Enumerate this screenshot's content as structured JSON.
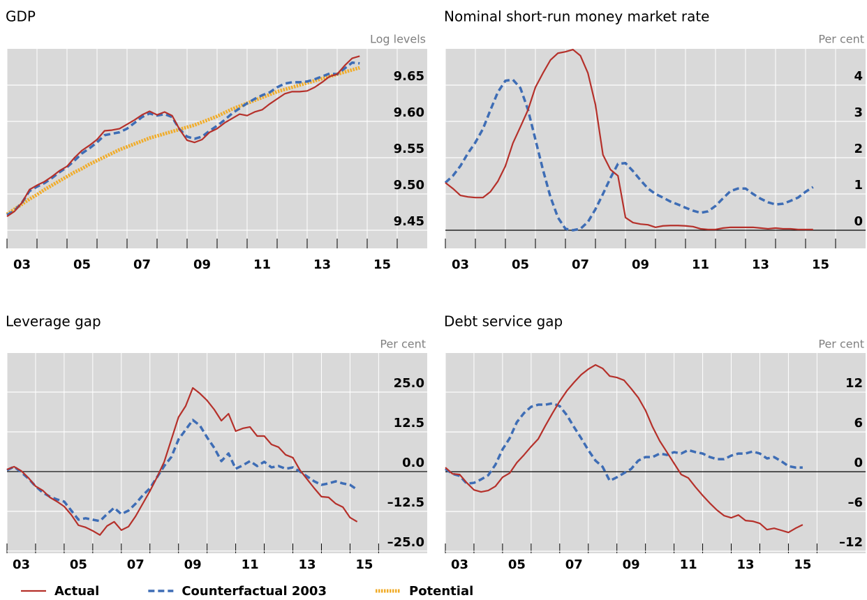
{
  "chart_data": [
    {
      "type": "line",
      "title": "GDP",
      "unit_label": "Log levels",
      "x": [
        3,
        3.25,
        3.5,
        3.75,
        4,
        4.25,
        4.5,
        4.75,
        5,
        5.25,
        5.5,
        5.75,
        6,
        6.25,
        6.5,
        6.75,
        7,
        7.25,
        7.5,
        7.75,
        8,
        8.25,
        8.5,
        8.75,
        9,
        9.25,
        9.5,
        9.75,
        10,
        10.25,
        10.5,
        10.75,
        11,
        11.25,
        11.5,
        11.75,
        12,
        12.25,
        12.5,
        12.75,
        13,
        13.25,
        13.5,
        13.75,
        14,
        14.25,
        14.5,
        14.75
      ],
      "xlim": [
        3,
        17
      ],
      "xticks": [
        {
          "value": 3,
          "label": "03"
        },
        {
          "value": 5,
          "label": "05"
        },
        {
          "value": 7,
          "label": "07"
        },
        {
          "value": 9,
          "label": "09"
        },
        11,
        13,
        15
      ],
      "xminorticks": [
        4,
        6,
        8,
        10,
        12,
        14,
        16
      ],
      "ylim": [
        9.425,
        9.7
      ],
      "yticks": [
        9.45,
        {
          "value": 9.5,
          "label": "9.50"
        },
        9.55,
        {
          "value": 9.6,
          "label": "9.60"
        },
        9.65
      ],
      "zero_line": false,
      "grid": true,
      "series": [
        {
          "name": "Actual",
          "color": "#b5302a",
          "style": "solid",
          "values": [
            9.469,
            9.476,
            9.488,
            9.506,
            9.512,
            9.517,
            9.524,
            9.532,
            9.538,
            9.55,
            9.56,
            9.567,
            9.575,
            9.587,
            9.588,
            9.59,
            9.596,
            9.602,
            9.609,
            9.614,
            9.609,
            9.613,
            9.608,
            9.589,
            9.574,
            9.571,
            9.575,
            9.585,
            9.59,
            9.598,
            9.604,
            9.61,
            9.608,
            9.613,
            9.616,
            9.624,
            9.631,
            9.638,
            9.641,
            9.641,
            9.642,
            9.647,
            9.654,
            9.662,
            9.665,
            9.677,
            9.687,
            9.69
          ]
        },
        {
          "name": "Counterfactual 2003",
          "color": "#3e6db5",
          "style": "dashed",
          "values": [
            9.471,
            9.477,
            9.488,
            9.504,
            9.51,
            9.515,
            9.522,
            9.53,
            9.537,
            9.546,
            9.556,
            9.563,
            9.571,
            9.581,
            9.583,
            9.585,
            9.59,
            9.598,
            9.606,
            9.611,
            9.608,
            9.61,
            9.606,
            9.589,
            9.579,
            9.576,
            9.579,
            9.587,
            9.594,
            9.602,
            9.611,
            9.618,
            9.625,
            9.631,
            9.636,
            9.64,
            9.647,
            9.652,
            9.654,
            9.654,
            9.655,
            9.658,
            9.662,
            9.666,
            9.665,
            9.673,
            9.681,
            9.68
          ]
        },
        {
          "name": "Potential",
          "color": "#f0ac2a",
          "style": "dotted",
          "values": [
            9.472,
            9.479,
            9.486,
            9.493,
            9.499,
            9.506,
            9.512,
            9.518,
            9.524,
            9.53,
            9.535,
            9.541,
            9.546,
            9.551,
            9.556,
            9.561,
            9.565,
            9.569,
            9.573,
            9.577,
            9.58,
            9.583,
            9.586,
            9.589,
            9.592,
            9.595,
            9.599,
            9.603,
            9.607,
            9.612,
            9.617,
            9.621,
            9.625,
            9.629,
            9.633,
            9.637,
            9.641,
            9.644,
            9.647,
            9.65,
            9.653,
            9.656,
            9.659,
            9.662,
            9.665,
            9.668,
            9.671,
            9.674
          ]
        }
      ]
    },
    {
      "type": "line",
      "title": "Nominal short-run money market rate",
      "unit_label": "Per cent",
      "x": [
        3,
        3.25,
        3.5,
        3.75,
        4,
        4.25,
        4.5,
        4.75,
        5,
        5.25,
        5.5,
        5.75,
        6,
        6.25,
        6.5,
        6.75,
        7,
        7.25,
        7.5,
        7.75,
        8,
        8.25,
        8.5,
        8.75,
        9,
        9.25,
        9.5,
        9.75,
        10,
        10.25,
        10.5,
        10.75,
        11,
        11.25,
        11.5,
        11.75,
        12,
        12.25,
        12.5,
        12.75,
        13,
        13.25,
        13.5,
        13.75,
        14,
        14.25,
        14.5,
        14.75,
        15,
        15.25
      ],
      "xlim": [
        3,
        17
      ],
      "xticks": [
        {
          "value": 3,
          "label": "03"
        },
        {
          "value": 5,
          "label": "05"
        },
        {
          "value": 7,
          "label": "07"
        },
        {
          "value": 9,
          "label": "09"
        },
        11,
        13,
        15
      ],
      "xminorticks": [
        4,
        6,
        8,
        10,
        12,
        14,
        16
      ],
      "ylim": [
        -0.5,
        5
      ],
      "yticks": [
        0,
        1,
        2,
        3,
        4
      ],
      "zero_line": true,
      "grid": true,
      "series": [
        {
          "color": "#b5302a",
          "style": "solid",
          "values": [
            1.31,
            1.15,
            0.96,
            0.92,
            0.9,
            0.9,
            1.06,
            1.35,
            1.77,
            2.4,
            2.85,
            3.31,
            3.94,
            4.33,
            4.69,
            4.88,
            4.92,
            4.98,
            4.81,
            4.33,
            3.46,
            2.08,
            1.67,
            1.5,
            0.35,
            0.21,
            0.17,
            0.15,
            0.08,
            0.12,
            0.13,
            0.13,
            0.12,
            0.1,
            0.04,
            0.02,
            0.02,
            0.06,
            0.08,
            0.08,
            0.08,
            0.08,
            0.06,
            0.04,
            0.06,
            0.04,
            0.04,
            0.02,
            0.02,
            0.02
          ]
        },
        {
          "color": "#3e6db5",
          "style": "dashed",
          "values": [
            1.31,
            1.5,
            1.77,
            2.12,
            2.42,
            2.79,
            3.31,
            3.81,
            4.12,
            4.15,
            3.92,
            3.33,
            2.5,
            1.67,
            0.92,
            0.35,
            0.04,
            0.0,
            0.04,
            0.23,
            0.58,
            1.0,
            1.44,
            1.83,
            1.85,
            1.63,
            1.38,
            1.15,
            1.0,
            0.9,
            0.79,
            0.71,
            0.62,
            0.54,
            0.48,
            0.52,
            0.67,
            0.88,
            1.08,
            1.15,
            1.15,
            1.0,
            0.87,
            0.77,
            0.71,
            0.73,
            0.81,
            0.9,
            1.06,
            1.19
          ]
        }
      ]
    },
    {
      "type": "line",
      "title": "Leverage gap",
      "unit_label": "Per cent",
      "x": [
        3,
        3.25,
        3.5,
        3.75,
        4,
        4.25,
        4.5,
        4.75,
        5,
        5.25,
        5.5,
        5.75,
        6,
        6.25,
        6.5,
        6.75,
        7,
        7.25,
        7.5,
        7.75,
        8,
        8.25,
        8.5,
        8.75,
        9,
        9.25,
        9.5,
        9.75,
        10,
        10.25,
        10.5,
        10.75,
        11,
        11.25,
        11.5,
        11.75,
        12,
        12.25,
        12.5,
        12.75,
        13,
        13.25,
        13.5,
        13.75,
        14,
        14.25,
        14.5,
        14.75,
        15,
        15.25
      ],
      "xlim": [
        3,
        17.7
      ],
      "xticks": [
        {
          "value": 3,
          "label": "03"
        },
        {
          "value": 5,
          "label": "05"
        },
        {
          "value": 7,
          "label": "07"
        },
        {
          "value": 9,
          "label": "09"
        },
        11,
        13,
        15
      ],
      "xminorticks": [
        4,
        6,
        8,
        10,
        12,
        14,
        16
      ],
      "ylim": [
        -25.7,
        37.3
      ],
      "yticks": [
        {
          "value": -25,
          "label": "–25.0"
        },
        {
          "value": -12.5,
          "label": "–12.5"
        },
        {
          "value": 0,
          "label": "0.0"
        },
        12.5,
        {
          "value": 25,
          "label": "25.0"
        }
      ],
      "zero_line": true,
      "grid": true,
      "series": [
        {
          "color": "#b5302a",
          "style": "solid",
          "values": [
            0.66,
            1.54,
            0.22,
            -1.97,
            -4.61,
            -5.92,
            -8.11,
            -9.43,
            -10.96,
            -13.6,
            -16.89,
            -17.54,
            -18.64,
            -19.96,
            -17.11,
            -15.79,
            -18.42,
            -17.32,
            -14.04,
            -10.09,
            -6.14,
            -1.75,
            3.07,
            10.09,
            17.11,
            20.61,
            26.32,
            24.56,
            22.37,
            19.52,
            16.01,
            18.2,
            12.72,
            13.6,
            14.04,
            11.18,
            11.18,
            8.55,
            7.68,
            5.26,
            4.39,
            0.44,
            -2.41,
            -5.26,
            -7.89,
            -8.11,
            -10.09,
            -11.18,
            -14.47,
            -15.79
          ]
        },
        {
          "color": "#3e6db5",
          "style": "dashed",
          "values": [
            0.44,
            1.54,
            -0.22,
            -2.19,
            -4.61,
            -6.58,
            -7.89,
            -8.77,
            -9.43,
            -12.28,
            -15.13,
            -14.69,
            -15.13,
            -15.57,
            -13.38,
            -11.4,
            -13.38,
            -12.28,
            -10.09,
            -7.46,
            -5.26,
            -1.75,
            1.75,
            4.61,
            10.09,
            13.16,
            16.23,
            14.47,
            10.75,
            7.46,
            3.29,
            5.7,
            0.88,
            1.97,
            3.29,
            1.75,
            3.07,
            1.32,
            1.75,
            0.88,
            1.32,
            0.0,
            -1.54,
            -3.07,
            -4.17,
            -3.73,
            -3.07,
            -3.73,
            -4.17,
            -5.7
          ]
        }
      ]
    },
    {
      "type": "line",
      "title": "Debt service gap",
      "unit_label": "Per cent",
      "x": [
        3,
        3.25,
        3.5,
        3.75,
        4,
        4.25,
        4.5,
        4.75,
        5,
        5.25,
        5.5,
        5.75,
        6,
        6.25,
        6.5,
        6.75,
        7,
        7.25,
        7.5,
        7.75,
        8,
        8.25,
        8.5,
        8.75,
        9,
        9.25,
        9.5,
        9.75,
        10,
        10.25,
        10.5,
        10.75,
        11,
        11.25,
        11.5,
        11.75,
        12,
        12.25,
        12.5,
        12.75,
        13,
        13.25,
        13.5,
        13.75,
        14,
        14.25,
        14.5,
        14.75,
        15,
        15.25,
        15.5
      ],
      "xlim": [
        3,
        17.7
      ],
      "xticks": [
        {
          "value": 3,
          "label": "03"
        },
        {
          "value": 5,
          "label": "05"
        },
        {
          "value": 7,
          "label": "07"
        },
        {
          "value": 9,
          "label": "09"
        },
        11,
        13,
        15
      ],
      "xminorticks": [
        4,
        6,
        8,
        10,
        12,
        14,
        16
      ],
      "ylim": [
        -12.3,
        17.9
      ],
      "yticks": [
        {
          "value": -12,
          "label": "–12"
        },
        {
          "value": -6,
          "label": "–6"
        },
        0,
        6,
        12
      ],
      "zero_line": true,
      "grid": true,
      "series": [
        {
          "color": "#b5302a",
          "style": "solid",
          "values": [
            0.63,
            -0.32,
            -0.42,
            -1.68,
            -2.74,
            -3.05,
            -2.84,
            -2.21,
            -0.84,
            -0.21,
            1.37,
            2.53,
            3.79,
            4.95,
            6.95,
            8.84,
            10.63,
            12.21,
            13.47,
            14.63,
            15.47,
            16.11,
            15.58,
            14.42,
            14.21,
            13.79,
            12.53,
            11.16,
            9.26,
            6.74,
            4.63,
            2.95,
            1.26,
            -0.42,
            -0.95,
            -2.32,
            -3.58,
            -4.74,
            -5.79,
            -6.63,
            -6.95,
            -6.53,
            -7.37,
            -7.47,
            -7.79,
            -8.74,
            -8.53,
            -8.84,
            -9.16,
            -8.53,
            -8.0
          ]
        },
        {
          "color": "#3e6db5",
          "style": "dashed",
          "values": [
            0.42,
            -0.32,
            -0.63,
            -1.79,
            -1.68,
            -1.16,
            -0.53,
            1.05,
            3.37,
            5.05,
            7.47,
            8.84,
            9.79,
            10.11,
            10.11,
            10.32,
            9.89,
            8.53,
            6.74,
            5.05,
            3.26,
            1.68,
            0.74,
            -1.37,
            -0.84,
            -0.21,
            0.42,
            1.68,
            2.21,
            2.21,
            2.74,
            2.53,
            2.95,
            2.74,
            3.26,
            2.95,
            2.74,
            2.21,
            1.89,
            1.89,
            2.42,
            2.74,
            2.74,
            3.05,
            2.74,
            2.0,
            2.21,
            1.58,
            0.84,
            0.63,
            0.63
          ]
        }
      ]
    }
  ]
}
